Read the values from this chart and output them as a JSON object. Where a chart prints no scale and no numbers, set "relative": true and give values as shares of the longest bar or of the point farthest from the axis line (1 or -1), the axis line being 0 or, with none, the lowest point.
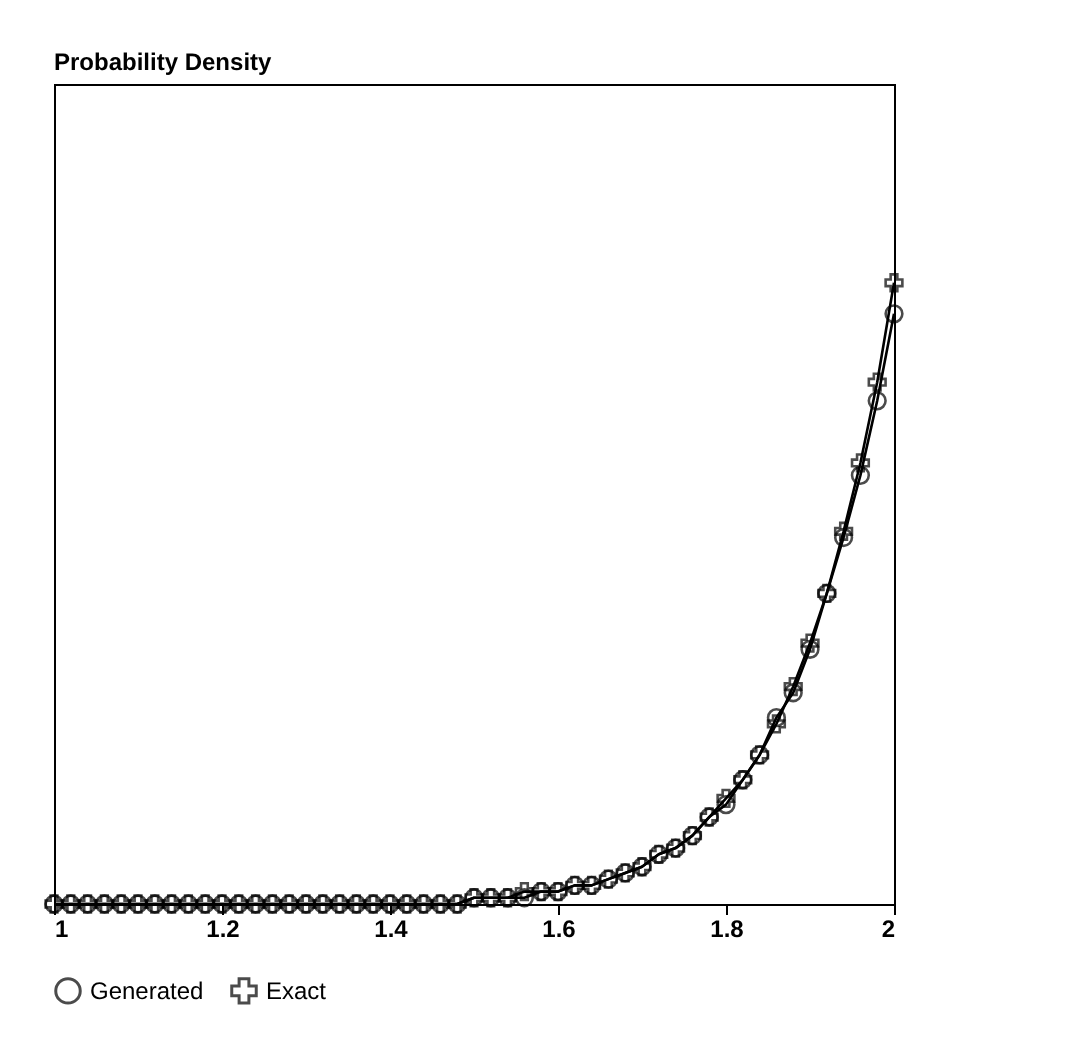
{
  "chart_data": {
    "type": "line",
    "annotations": [
      "Probability Density"
    ],
    "relative": true,
    "xlim": [
      1,
      2
    ],
    "xticks": [
      1,
      1.2,
      1.4,
      1.6,
      1.8,
      2
    ],
    "legend": "bottom",
    "grid": false,
    "line_style": "solid",
    "x": [
      1.0,
      1.02,
      1.04,
      1.06,
      1.08,
      1.1,
      1.12,
      1.14,
      1.16,
      1.18,
      1.2,
      1.22,
      1.24,
      1.26,
      1.28,
      1.3,
      1.32,
      1.34,
      1.36,
      1.38,
      1.4,
      1.42,
      1.44,
      1.46,
      1.48,
      1.5,
      1.52,
      1.54,
      1.56,
      1.58,
      1.6,
      1.62,
      1.64,
      1.66,
      1.68,
      1.7,
      1.72,
      1.74,
      1.76,
      1.78,
      1.8,
      1.82,
      1.84,
      1.86,
      1.88,
      1.9,
      1.92,
      1.94,
      1.96,
      1.98,
      2.0
    ],
    "series": [
      {
        "name": "Generated",
        "color": "#000000",
        "marker": "circle",
        "values": [
          0,
          0,
          0,
          0,
          0,
          0,
          0,
          0,
          0,
          0,
          0,
          0,
          0,
          0,
          0,
          0,
          0,
          0,
          0,
          0,
          0,
          0,
          0,
          0,
          0,
          0.01,
          0.01,
          0.01,
          0.01,
          0.02,
          0.02,
          0.03,
          0.03,
          0.04,
          0.05,
          0.06,
          0.08,
          0.09,
          0.11,
          0.14,
          0.16,
          0.2,
          0.24,
          0.3,
          0.34,
          0.41,
          0.5,
          0.59,
          0.69,
          0.81,
          0.95
        ]
      },
      {
        "name": "Exact",
        "color": "#000000",
        "marker": "cross",
        "values": [
          0,
          0,
          0,
          0,
          0,
          0,
          0,
          0,
          0,
          0,
          0,
          0,
          0,
          0,
          0,
          0,
          0,
          0,
          0,
          0,
          0,
          0,
          0,
          0,
          0,
          0.01,
          0.01,
          0.01,
          0.02,
          0.02,
          0.02,
          0.03,
          0.03,
          0.04,
          0.05,
          0.06,
          0.08,
          0.09,
          0.11,
          0.14,
          0.17,
          0.2,
          0.24,
          0.29,
          0.35,
          0.42,
          0.5,
          0.6,
          0.71,
          0.84,
          1
        ]
      }
    ]
  }
}
